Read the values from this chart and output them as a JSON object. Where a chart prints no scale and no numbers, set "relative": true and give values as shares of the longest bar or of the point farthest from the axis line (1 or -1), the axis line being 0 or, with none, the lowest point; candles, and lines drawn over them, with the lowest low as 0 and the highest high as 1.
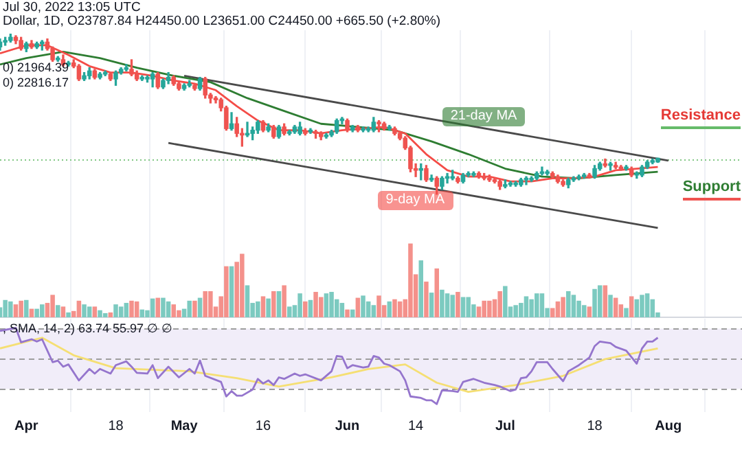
{
  "chart_data": [
    {
      "type": "candlestick",
      "title": "Dollar, 1D, O23787.84 H24450.00 L23651.00 C24450.00 +665.50 (+2.80%)",
      "subtitle": "Jul 30, 2022 13:05 UTC",
      "relative": true,
      "tick_labels": false,
      "grid": "x",
      "annotations": [
        "0) 21964.39",
        "0) 22816.17",
        "Resistance",
        "Support"
      ],
      "xlim": [
        "2022-03-27",
        "2022-08-15"
      ],
      "xticks": [
        "2022-04-01",
        "2022-04-18",
        "2022-05-01",
        "2022-05-16",
        "2022-06-01",
        "2022-06-14",
        "2022-07-01",
        "2022-07-18",
        "2022-08-01"
      ],
      "x": [
        "2022-03-27",
        "2022-03-28",
        "2022-03-29",
        "2022-03-30",
        "2022-03-31",
        "2022-04-01",
        "2022-04-02",
        "2022-04-03",
        "2022-04-04",
        "2022-04-05",
        "2022-04-06",
        "2022-04-07",
        "2022-04-08",
        "2022-04-09",
        "2022-04-10",
        "2022-04-11",
        "2022-04-12",
        "2022-04-13",
        "2022-04-14",
        "2022-04-15",
        "2022-04-16",
        "2022-04-17",
        "2022-04-18",
        "2022-04-19",
        "2022-04-20",
        "2022-04-21",
        "2022-04-22",
        "2022-04-23",
        "2022-04-24",
        "2022-04-25",
        "2022-04-26",
        "2022-04-27",
        "2022-04-28",
        "2022-04-29",
        "2022-04-30",
        "2022-05-01",
        "2022-05-02",
        "2022-05-03",
        "2022-05-04",
        "2022-05-05",
        "2022-05-06",
        "2022-05-07",
        "2022-05-08",
        "2022-05-09",
        "2022-05-10",
        "2022-05-11",
        "2022-05-12",
        "2022-05-13",
        "2022-05-14",
        "2022-05-15",
        "2022-05-16",
        "2022-05-17",
        "2022-05-18",
        "2022-05-19",
        "2022-05-20",
        "2022-05-21",
        "2022-05-22",
        "2022-05-23",
        "2022-05-24",
        "2022-05-25",
        "2022-05-26",
        "2022-05-27",
        "2022-05-28",
        "2022-05-29",
        "2022-05-30",
        "2022-05-31",
        "2022-06-01",
        "2022-06-02",
        "2022-06-03",
        "2022-06-04",
        "2022-06-05",
        "2022-06-06",
        "2022-06-07",
        "2022-06-08",
        "2022-06-09",
        "2022-06-10",
        "2022-06-11",
        "2022-06-12",
        "2022-06-13",
        "2022-06-14",
        "2022-06-15",
        "2022-06-16",
        "2022-06-17",
        "2022-06-18",
        "2022-06-19",
        "2022-06-20",
        "2022-06-21",
        "2022-06-22",
        "2022-06-23",
        "2022-06-24",
        "2022-06-25",
        "2022-06-26",
        "2022-06-27",
        "2022-06-28",
        "2022-06-29",
        "2022-06-30",
        "2022-07-01",
        "2022-07-02",
        "2022-07-03",
        "2022-07-04",
        "2022-07-05",
        "2022-07-06",
        "2022-07-07",
        "2022-07-08",
        "2022-07-09",
        "2022-07-10",
        "2022-07-11",
        "2022-07-12",
        "2022-07-13",
        "2022-07-14",
        "2022-07-15",
        "2022-07-16",
        "2022-07-17",
        "2022-07-18",
        "2022-07-19",
        "2022-07-20",
        "2022-07-21",
        "2022-07-22",
        "2022-07-23",
        "2022-07-24",
        "2022-07-25",
        "2022-07-26",
        "2022-07-27",
        "2022-07-28",
        "2022-07-29",
        "2022-07-30"
      ],
      "ohlc": [
        [
          0.92,
          0.97,
          0.9,
          0.95
        ],
        [
          0.95,
          0.98,
          0.93,
          0.96
        ],
        [
          0.96,
          1,
          0.95,
          0.98
        ],
        [
          0.98,
          0.99,
          0.94,
          0.96
        ],
        [
          0.96,
          0.98,
          0.9,
          0.91
        ],
        [
          0.91,
          0.95,
          0.89,
          0.94
        ],
        [
          0.94,
          0.96,
          0.91,
          0.92
        ],
        [
          0.92,
          0.95,
          0.91,
          0.94
        ],
        [
          0.94,
          0.96,
          0.9,
          0.95
        ],
        [
          0.95,
          0.97,
          0.9,
          0.91
        ],
        [
          0.91,
          0.92,
          0.83,
          0.84
        ],
        [
          0.84,
          0.86,
          0.83,
          0.85
        ],
        [
          0.84,
          0.87,
          0.8,
          0.81
        ],
        [
          0.81,
          0.83,
          0.8,
          0.82
        ],
        [
          0.82,
          0.84,
          0.79,
          0.8
        ],
        [
          0.8,
          0.81,
          0.71,
          0.72
        ],
        [
          0.72,
          0.76,
          0.71,
          0.74
        ],
        [
          0.74,
          0.79,
          0.72,
          0.77
        ],
        [
          0.77,
          0.78,
          0.72,
          0.73
        ],
        [
          0.73,
          0.76,
          0.72,
          0.75
        ],
        [
          0.75,
          0.77,
          0.74,
          0.76
        ],
        [
          0.75,
          0.76,
          0.71,
          0.72
        ],
        [
          0.72,
          0.77,
          0.68,
          0.76
        ],
        [
          0.76,
          0.79,
          0.75,
          0.78
        ],
        [
          0.78,
          0.81,
          0.77,
          0.79
        ],
        [
          0.78,
          0.84,
          0.74,
          0.75
        ],
        [
          0.75,
          0.77,
          0.71,
          0.72
        ],
        [
          0.72,
          0.74,
          0.71,
          0.73
        ],
        [
          0.72,
          0.74,
          0.7,
          0.73
        ],
        [
          0.72,
          0.76,
          0.67,
          0.75
        ],
        [
          0.75,
          0.76,
          0.66,
          0.67
        ],
        [
          0.67,
          0.72,
          0.66,
          0.71
        ],
        [
          0.71,
          0.76,
          0.69,
          0.73
        ],
        [
          0.73,
          0.74,
          0.68,
          0.69
        ],
        [
          0.69,
          0.7,
          0.65,
          0.66
        ],
        [
          0.66,
          0.69,
          0.65,
          0.68
        ],
        [
          0.68,
          0.71,
          0.67,
          0.69
        ],
        [
          0.68,
          0.69,
          0.65,
          0.66
        ],
        [
          0.66,
          0.73,
          0.65,
          0.72
        ],
        [
          0.72,
          0.73,
          0.6,
          0.62
        ],
        [
          0.62,
          0.63,
          0.57,
          0.6
        ],
        [
          0.6,
          0.61,
          0.57,
          0.59
        ],
        [
          0.59,
          0.6,
          0.52,
          0.54
        ],
        [
          0.54,
          0.55,
          0.4,
          0.41
        ],
        [
          0.41,
          0.51,
          0.4,
          0.44
        ],
        [
          0.44,
          0.48,
          0.36,
          0.38
        ],
        [
          0.38,
          0.41,
          0.3,
          0.37
        ],
        [
          0.37,
          0.45,
          0.36,
          0.38
        ],
        [
          0.38,
          0.42,
          0.34,
          0.4
        ],
        [
          0.4,
          0.46,
          0.38,
          0.45
        ],
        [
          0.45,
          0.46,
          0.39,
          0.4
        ],
        [
          0.4,
          0.44,
          0.39,
          0.42
        ],
        [
          0.42,
          0.43,
          0.35,
          0.36
        ],
        [
          0.36,
          0.43,
          0.35,
          0.42
        ],
        [
          0.42,
          0.44,
          0.37,
          0.38
        ],
        [
          0.38,
          0.4,
          0.37,
          0.39
        ],
        [
          0.39,
          0.43,
          0.38,
          0.42
        ],
        [
          0.38,
          0.45,
          0.37,
          0.42
        ],
        [
          0.38,
          0.41,
          0.37,
          0.39
        ],
        [
          0.39,
          0.41,
          0.38,
          0.4
        ],
        [
          0.39,
          0.4,
          0.35,
          0.38
        ],
        [
          0.38,
          0.39,
          0.34,
          0.36
        ],
        [
          0.36,
          0.38,
          0.35,
          0.37
        ],
        [
          0.37,
          0.4,
          0.36,
          0.39
        ],
        [
          0.39,
          0.47,
          0.38,
          0.46
        ],
        [
          0.46,
          0.48,
          0.44,
          0.47
        ],
        [
          0.46,
          0.47,
          0.39,
          0.4
        ],
        [
          0.4,
          0.43,
          0.39,
          0.42
        ],
        [
          0.42,
          0.43,
          0.39,
          0.4
        ],
        [
          0.4,
          0.42,
          0.39,
          0.41
        ],
        [
          0.4,
          0.42,
          0.39,
          0.41
        ],
        [
          0.4,
          0.48,
          0.39,
          0.45
        ],
        [
          0.45,
          0.46,
          0.39,
          0.44
        ],
        [
          0.44,
          0.45,
          0.4,
          0.41
        ],
        [
          0.41,
          0.43,
          0.4,
          0.42
        ],
        [
          0.41,
          0.42,
          0.37,
          0.38
        ],
        [
          0.38,
          0.39,
          0.34,
          0.35
        ],
        [
          0.35,
          0.36,
          0.28,
          0.29
        ],
        [
          0.29,
          0.3,
          0.14,
          0.16
        ],
        [
          0.16,
          0.19,
          0.11,
          0.15
        ],
        [
          0.15,
          0.19,
          0.09,
          0.16
        ],
        [
          0.16,
          0.18,
          0.08,
          0.09
        ],
        [
          0.09,
          0.12,
          0.08,
          0.1
        ],
        [
          0.1,
          0.11,
          0,
          0.05
        ],
        [
          0.05,
          0.11,
          0.03,
          0.1
        ],
        [
          0.1,
          0.13,
          0.07,
          0.11
        ],
        [
          0.1,
          0.15,
          0.09,
          0.11
        ],
        [
          0.1,
          0.11,
          0.07,
          0.08
        ],
        [
          0.08,
          0.13,
          0.07,
          0.12
        ],
        [
          0.12,
          0.14,
          0.11,
          0.13
        ],
        [
          0.12,
          0.14,
          0.11,
          0.13
        ],
        [
          0.13,
          0.14,
          0.1,
          0.11
        ],
        [
          0.11,
          0.13,
          0.09,
          0.1
        ],
        [
          0.1,
          0.12,
          0.08,
          0.09
        ],
        [
          0.09,
          0.1,
          0.07,
          0.08
        ],
        [
          0.08,
          0.09,
          0.03,
          0.05
        ],
        [
          0.05,
          0.09,
          0.04,
          0.06
        ],
        [
          0.06,
          0.08,
          0.05,
          0.07
        ],
        [
          0.06,
          0.08,
          0.05,
          0.07
        ],
        [
          0.06,
          0.1,
          0.05,
          0.09
        ],
        [
          0.09,
          0.11,
          0.06,
          0.1
        ],
        [
          0.09,
          0.11,
          0.08,
          0.1
        ],
        [
          0.1,
          0.14,
          0.09,
          0.13
        ],
        [
          0.13,
          0.17,
          0.12,
          0.14
        ],
        [
          0.13,
          0.15,
          0.12,
          0.14
        ],
        [
          0.13,
          0.14,
          0.1,
          0.11
        ],
        [
          0.11,
          0.12,
          0.07,
          0.08
        ],
        [
          0.08,
          0.09,
          0.05,
          0.06
        ],
        [
          0.06,
          0.1,
          0.04,
          0.09
        ],
        [
          0.09,
          0.11,
          0.08,
          0.1
        ],
        [
          0.1,
          0.12,
          0.09,
          0.11
        ],
        [
          0.11,
          0.13,
          0.1,
          0.12
        ],
        [
          0.12,
          0.13,
          0.1,
          0.11
        ],
        [
          0.11,
          0.18,
          0.1,
          0.16
        ],
        [
          0.16,
          0.2,
          0.15,
          0.19
        ],
        [
          0.19,
          0.22,
          0.17,
          0.18
        ],
        [
          0.18,
          0.2,
          0.15,
          0.19
        ],
        [
          0.18,
          0.2,
          0.16,
          0.17
        ],
        [
          0.17,
          0.18,
          0.15,
          0.16
        ],
        [
          0.16,
          0.18,
          0.15,
          0.17
        ],
        [
          0.16,
          0.17,
          0.11,
          0.12
        ],
        [
          0.12,
          0.14,
          0.1,
          0.13
        ],
        [
          0.12,
          0.18,
          0.11,
          0.17
        ],
        [
          0.17,
          0.21,
          0.16,
          0.2
        ],
        [
          0.2,
          0.22,
          0.19,
          0.21
        ],
        [
          0.202,
          0.225,
          0.199,
          0.225
        ]
      ],
      "colors": [
        "#26a69a",
        "#26a69a",
        "#26a69a",
        "#ef5350",
        "#ef5350",
        "#26a69a",
        "#ef5350",
        "#26a69a",
        "#26a69a",
        "#ef5350",
        "#ef5350",
        "#26a69a",
        "#ef5350",
        "#26a69a",
        "#ef5350",
        "#ef5350",
        "#26a69a",
        "#26a69a",
        "#ef5350",
        "#26a69a",
        "#26a69a",
        "#ef5350",
        "#26a69a",
        "#26a69a",
        "#26a69a",
        "#ef5350",
        "#ef5350",
        "#26a69a",
        "#26a69a",
        "#26a69a",
        "#ef5350",
        "#26a69a",
        "#26a69a",
        "#ef5350",
        "#ef5350",
        "#26a69a",
        "#26a69a",
        "#ef5350",
        "#26a69a",
        "#ef5350",
        "#ef5350",
        "#ef5350",
        "#ef5350",
        "#ef5350",
        "#26a69a",
        "#ef5350",
        "#ef5350",
        "#26a69a",
        "#26a69a",
        "#26a69a",
        "#ef5350",
        "#26a69a",
        "#ef5350",
        "#26a69a",
        "#ef5350",
        "#26a69a",
        "#26a69a",
        "#26a69a",
        "#ef5350",
        "#26a69a",
        "#ef5350",
        "#ef5350",
        "#26a69a",
        "#26a69a",
        "#26a69a",
        "#26a69a",
        "#ef5350",
        "#26a69a",
        "#ef5350",
        "#26a69a",
        "#26a69a",
        "#26a69a",
        "#ef5350",
        "#ef5350",
        "#26a69a",
        "#ef5350",
        "#ef5350",
        "#ef5350",
        "#ef5350",
        "#ef5350",
        "#26a69a",
        "#ef5350",
        "#26a69a",
        "#ef5350",
        "#26a69a",
        "#26a69a",
        "#26a69a",
        "#ef5350",
        "#26a69a",
        "#26a69a",
        "#26a69a",
        "#ef5350",
        "#ef5350",
        "#ef5350",
        "#ef5350",
        "#ef5350",
        "#26a69a",
        "#26a69a",
        "#26a69a",
        "#26a69a",
        "#26a69a",
        "#26a69a",
        "#26a69a",
        "#26a69a",
        "#26a69a",
        "#ef5350",
        "#ef5350",
        "#ef5350",
        "#26a69a",
        "#26a69a",
        "#26a69a",
        "#26a69a",
        "#ef5350",
        "#26a69a",
        "#26a69a",
        "#ef5350",
        "#26a69a",
        "#ef5350",
        "#ef5350",
        "#26a69a",
        "#ef5350",
        "#26a69a",
        "#26a69a",
        "#26a69a",
        "#26a69a",
        "#26a69a"
      ],
      "series": [
        {
          "type": "line",
          "name": "9-day MA",
          "color": "#f44c47",
          "x": [
            "2022-03-27",
            "2022-04-01",
            "2022-04-05",
            "2022-04-09",
            "2022-04-13",
            "2022-04-17",
            "2022-04-21",
            "2022-04-25",
            "2022-04-29",
            "2022-05-03",
            "2022-05-07",
            "2022-05-11",
            "2022-05-15",
            "2022-05-19",
            "2022-05-23",
            "2022-05-27",
            "2022-05-31",
            "2022-06-04",
            "2022-06-08",
            "2022-06-12",
            "2022-06-16",
            "2022-06-20",
            "2022-06-24",
            "2022-06-28",
            "2022-07-02",
            "2022-07-06",
            "2022-07-10",
            "2022-07-14",
            "2022-07-18",
            "2022-07-22",
            "2022-07-26",
            "2022-07-30"
          ],
          "values": [
            0.88,
            0.93,
            0.93,
            0.87,
            0.8,
            0.76,
            0.76,
            0.74,
            0.71,
            0.69,
            0.65,
            0.55,
            0.46,
            0.4,
            0.4,
            0.38,
            0.4,
            0.41,
            0.42,
            0.38,
            0.25,
            0.15,
            0.11,
            0.11,
            0.08,
            0.08,
            0.1,
            0.1,
            0.11,
            0.15,
            0.16,
            0.17
          ]
        },
        {
          "type": "line",
          "name": "21-day MA",
          "color": "#2e7d32",
          "x": [
            "2022-03-27",
            "2022-04-01",
            "2022-04-08",
            "2022-04-15",
            "2022-04-22",
            "2022-04-29",
            "2022-05-06",
            "2022-05-13",
            "2022-05-20",
            "2022-05-27",
            "2022-06-03",
            "2022-06-10",
            "2022-06-17",
            "2022-06-24",
            "2022-07-01",
            "2022-07-08",
            "2022-07-15",
            "2022-07-22",
            "2022-07-30"
          ],
          "values": [
            0.81,
            0.85,
            0.89,
            0.85,
            0.79,
            0.74,
            0.7,
            0.6,
            0.52,
            0.44,
            0.42,
            0.4,
            0.33,
            0.25,
            0.16,
            0.11,
            0.1,
            0.12,
            0.14
          ]
        },
        {
          "type": "line",
          "color": "#4a4a4a",
          "x": [
            "2022-05-01",
            "2022-08-01"
          ],
          "values": [
            0.74,
            0.21
          ]
        },
        {
          "type": "line",
          "color": "#4a4a4a",
          "x": [
            "2022-04-28",
            "2022-07-30"
          ],
          "values": [
            0.32,
            -0.21
          ]
        }
      ],
      "ref_lines": [
        {
          "axis": "y",
          "value": 0.22,
          "color": "#81c784",
          "line_style": "dotted"
        }
      ]
    },
    {
      "type": "bar",
      "relative": true,
      "tick_labels": false,
      "grid": "x",
      "xlim": [
        "2022-03-27",
        "2022-08-15"
      ],
      "xticks": [
        "2022-04-01",
        "2022-04-18",
        "2022-05-01",
        "2022-05-16",
        "2022-06-01",
        "2022-06-14",
        "2022-07-01",
        "2022-07-18",
        "2022-08-01"
      ],
      "x": [
        "2022-03-27",
        "2022-03-28",
        "2022-03-29",
        "2022-03-30",
        "2022-03-31",
        "2022-04-01",
        "2022-04-02",
        "2022-04-03",
        "2022-04-04",
        "2022-04-05",
        "2022-04-06",
        "2022-04-07",
        "2022-04-08",
        "2022-04-09",
        "2022-04-10",
        "2022-04-11",
        "2022-04-12",
        "2022-04-13",
        "2022-04-14",
        "2022-04-15",
        "2022-04-16",
        "2022-04-17",
        "2022-04-18",
        "2022-04-19",
        "2022-04-20",
        "2022-04-21",
        "2022-04-22",
        "2022-04-23",
        "2022-04-24",
        "2022-04-25",
        "2022-04-26",
        "2022-04-27",
        "2022-04-28",
        "2022-04-29",
        "2022-04-30",
        "2022-05-01",
        "2022-05-02",
        "2022-05-03",
        "2022-05-04",
        "2022-05-05",
        "2022-05-06",
        "2022-05-07",
        "2022-05-08",
        "2022-05-09",
        "2022-05-10",
        "2022-05-11",
        "2022-05-12",
        "2022-05-13",
        "2022-05-14",
        "2022-05-15",
        "2022-05-16",
        "2022-05-17",
        "2022-05-18",
        "2022-05-19",
        "2022-05-20",
        "2022-05-21",
        "2022-05-22",
        "2022-05-23",
        "2022-05-24",
        "2022-05-25",
        "2022-05-26",
        "2022-05-27",
        "2022-05-28",
        "2022-05-29",
        "2022-05-30",
        "2022-05-31",
        "2022-06-01",
        "2022-06-02",
        "2022-06-03",
        "2022-06-04",
        "2022-06-05",
        "2022-06-06",
        "2022-06-07",
        "2022-06-08",
        "2022-06-09",
        "2022-06-10",
        "2022-06-11",
        "2022-06-12",
        "2022-06-13",
        "2022-06-14",
        "2022-06-15",
        "2022-06-16",
        "2022-06-17",
        "2022-06-18",
        "2022-06-19",
        "2022-06-20",
        "2022-06-21",
        "2022-06-22",
        "2022-06-23",
        "2022-06-24",
        "2022-06-25",
        "2022-06-26",
        "2022-06-27",
        "2022-06-28",
        "2022-06-29",
        "2022-06-30",
        "2022-07-01",
        "2022-07-02",
        "2022-07-03",
        "2022-07-04",
        "2022-07-05",
        "2022-07-06",
        "2022-07-07",
        "2022-07-08",
        "2022-07-09",
        "2022-07-10",
        "2022-07-11",
        "2022-07-12",
        "2022-07-13",
        "2022-07-14",
        "2022-07-15",
        "2022-07-16",
        "2022-07-17",
        "2022-07-18",
        "2022-07-19",
        "2022-07-20",
        "2022-07-21",
        "2022-07-22",
        "2022-07-23",
        "2022-07-24",
        "2022-07-25",
        "2022-07-26",
        "2022-07-27",
        "2022-07-28",
        "2022-07-29",
        "2022-07-30"
      ],
      "values": [
        0.13,
        0.23,
        0.21,
        0.17,
        0.22,
        0.23,
        0.11,
        0.11,
        0.17,
        0.19,
        0.3,
        0.16,
        0.14,
        0.06,
        0.08,
        0.22,
        0.17,
        0.14,
        0.14,
        0.09,
        0.05,
        0.06,
        0.17,
        0.14,
        0.19,
        0.22,
        0.21,
        0.1,
        0.09,
        0.25,
        0.26,
        0.26,
        0.21,
        0.17,
        0.09,
        0.11,
        0.22,
        0.22,
        0.26,
        0.35,
        0.35,
        0.14,
        0.28,
        0.69,
        0.69,
        0.75,
        0.86,
        0.43,
        0.19,
        0.21,
        0.28,
        0.25,
        0.35,
        0.35,
        0.43,
        0.14,
        0.16,
        0.32,
        0.21,
        0.23,
        0.34,
        0.27,
        0.32,
        0.34,
        0.24,
        0.19,
        0.1,
        0.1,
        0.26,
        0.29,
        0.21,
        0.16,
        0.29,
        0.16,
        0.21,
        0.24,
        0.21,
        0.24,
        1,
        0.58,
        0.77,
        0.48,
        0.33,
        0.66,
        0.37,
        0.32,
        0.3,
        0.34,
        0.27,
        0.27,
        0.17,
        0.14,
        0.22,
        0.22,
        0.24,
        0.35,
        0.42,
        0.14,
        0.16,
        0.19,
        0.28,
        0.24,
        0.32,
        0.32,
        0.12,
        0.12,
        0.21,
        0.27,
        0.35,
        0.3,
        0.22,
        0.16,
        0.14,
        0.38,
        0.43,
        0.43,
        0.3,
        0.26,
        0.17,
        0.12,
        0.28,
        0.24,
        0.3,
        0.32,
        0.24,
        0.06
      ],
      "colors": [
        "#7ccac0",
        "#7ccac0",
        "#7ccac0",
        "#f4918b",
        "#f4918b",
        "#7ccac0",
        "#f4918b",
        "#7ccac0",
        "#7ccac0",
        "#f4918b",
        "#f4918b",
        "#7ccac0",
        "#f4918b",
        "#7ccac0",
        "#f4918b",
        "#f4918b",
        "#7ccac0",
        "#7ccac0",
        "#f4918b",
        "#7ccac0",
        "#7ccac0",
        "#f4918b",
        "#7ccac0",
        "#7ccac0",
        "#7ccac0",
        "#f4918b",
        "#f4918b",
        "#7ccac0",
        "#7ccac0",
        "#7ccac0",
        "#f4918b",
        "#7ccac0",
        "#7ccac0",
        "#f4918b",
        "#f4918b",
        "#7ccac0",
        "#7ccac0",
        "#f4918b",
        "#7ccac0",
        "#f4918b",
        "#f4918b",
        "#f4918b",
        "#f4918b",
        "#f4918b",
        "#7ccac0",
        "#f4918b",
        "#f4918b",
        "#7ccac0",
        "#7ccac0",
        "#7ccac0",
        "#f4918b",
        "#7ccac0",
        "#f4918b",
        "#7ccac0",
        "#f4918b",
        "#7ccac0",
        "#7ccac0",
        "#7ccac0",
        "#f4918b",
        "#7ccac0",
        "#f4918b",
        "#f4918b",
        "#7ccac0",
        "#7ccac0",
        "#7ccac0",
        "#7ccac0",
        "#f4918b",
        "#7ccac0",
        "#f4918b",
        "#7ccac0",
        "#7ccac0",
        "#7ccac0",
        "#f4918b",
        "#f4918b",
        "#7ccac0",
        "#f4918b",
        "#f4918b",
        "#f4918b",
        "#f4918b",
        "#f4918b",
        "#7ccac0",
        "#f4918b",
        "#7ccac0",
        "#f4918b",
        "#7ccac0",
        "#7ccac0",
        "#7ccac0",
        "#f4918b",
        "#7ccac0",
        "#7ccac0",
        "#7ccac0",
        "#f4918b",
        "#f4918b",
        "#f4918b",
        "#f4918b",
        "#f4918b",
        "#7ccac0",
        "#7ccac0",
        "#7ccac0",
        "#7ccac0",
        "#7ccac0",
        "#7ccac0",
        "#7ccac0",
        "#7ccac0",
        "#7ccac0",
        "#f4918b",
        "#f4918b",
        "#f4918b",
        "#7ccac0",
        "#7ccac0",
        "#7ccac0",
        "#7ccac0",
        "#f4918b",
        "#7ccac0",
        "#7ccac0",
        "#f4918b",
        "#7ccac0",
        "#f4918b",
        "#f4918b",
        "#7ccac0",
        "#f4918b",
        "#7ccac0",
        "#7ccac0",
        "#7ccac0",
        "#7ccac0",
        "#7ccac0"
      ]
    },
    {
      "type": "line",
      "annotations": [
        ", SMA, 14, 2)  63.74  55.97  ∅  ∅"
      ],
      "relative": true,
      "tick_labels": "x",
      "grid": "x",
      "xlim": [
        "2022-03-27",
        "2022-08-15"
      ],
      "xticks": [
        {
          "value": "2022-04-01",
          "label": "Apr"
        },
        {
          "value": "2022-04-18",
          "label": "18"
        },
        {
          "value": "2022-05-01",
          "label": "May"
        },
        {
          "value": "2022-05-16",
          "label": "16"
        },
        {
          "value": "2022-06-01",
          "label": "Jun"
        },
        {
          "value": "2022-06-14",
          "label": "14"
        },
        {
          "value": "2022-07-01",
          "label": "Jul"
        },
        {
          "value": "2022-07-18",
          "label": "18"
        },
        {
          "value": "2022-08-01",
          "label": "Aug"
        }
      ],
      "series": [
        {
          "color": "#9575cd",
          "x": [
            "2022-03-27",
            "2022-03-30",
            "2022-03-31",
            "2022-04-02",
            "2022-04-03",
            "2022-04-04",
            "2022-04-06",
            "2022-04-07",
            "2022-04-08",
            "2022-04-09",
            "2022-04-11",
            "2022-04-13",
            "2022-04-14",
            "2022-04-15",
            "2022-04-17",
            "2022-04-18",
            "2022-04-20",
            "2022-04-21",
            "2022-04-22",
            "2022-04-24",
            "2022-04-25",
            "2022-04-26",
            "2022-04-28",
            "2022-04-30",
            "2022-05-02",
            "2022-05-03",
            "2022-05-04",
            "2022-05-05",
            "2022-05-08",
            "2022-05-09",
            "2022-05-10",
            "2022-05-11",
            "2022-05-12",
            "2022-05-14",
            "2022-05-15",
            "2022-05-16",
            "2022-05-17",
            "2022-05-18",
            "2022-05-19",
            "2022-05-20",
            "2022-05-22",
            "2022-05-23",
            "2022-05-24",
            "2022-05-27",
            "2022-05-29",
            "2022-05-30",
            "2022-05-31",
            "2022-06-01",
            "2022-06-02",
            "2022-06-04",
            "2022-06-05",
            "2022-06-06",
            "2022-06-07",
            "2022-06-08",
            "2022-06-09",
            "2022-06-11",
            "2022-06-12",
            "2022-06-13",
            "2022-06-15",
            "2022-06-16",
            "2022-06-17",
            "2022-06-18",
            "2022-06-19",
            "2022-06-21",
            "2022-06-22",
            "2022-06-23",
            "2022-06-25",
            "2022-06-27",
            "2022-06-29",
            "2022-06-30",
            "2022-07-02",
            "2022-07-03",
            "2022-07-04",
            "2022-07-05",
            "2022-07-06",
            "2022-07-07",
            "2022-07-09",
            "2022-07-10",
            "2022-07-12",
            "2022-07-13",
            "2022-07-15",
            "2022-07-17",
            "2022-07-18",
            "2022-07-19",
            "2022-07-21",
            "2022-07-22",
            "2022-07-24",
            "2022-07-26",
            "2022-07-27",
            "2022-07-28",
            "2022-07-29",
            "2022-07-30"
          ],
          "values": [
            0.96,
            1,
            0.81,
            0.85,
            0.82,
            0.85,
            0.55,
            0.57,
            0.49,
            0.52,
            0.31,
            0.46,
            0.4,
            0.46,
            0.4,
            0.51,
            0.56,
            0.49,
            0.41,
            0.4,
            0.51,
            0.34,
            0.49,
            0.35,
            0.46,
            0.4,
            0.57,
            0.37,
            0.29,
            0.1,
            0.17,
            0.11,
            0.11,
            0.19,
            0.33,
            0.27,
            0.31,
            0.25,
            0.35,
            0.33,
            0.4,
            0.37,
            0.39,
            0.31,
            0.43,
            0.63,
            0.62,
            0.47,
            0.51,
            0.48,
            0.49,
            0.63,
            0.61,
            0.53,
            0.51,
            0.43,
            0.31,
            0.1,
            0.08,
            0.05,
            0.05,
            0,
            0.18,
            0.17,
            0.16,
            0.29,
            0.33,
            0.28,
            0.25,
            0.23,
            0.17,
            0.19,
            0.34,
            0.35,
            0.43,
            0.55,
            0.55,
            0.46,
            0.3,
            0.43,
            0.51,
            0.61,
            0.76,
            0.82,
            0.8,
            0.75,
            0.7,
            0.53,
            0.73,
            0.82,
            0.82,
            0.87
          ]
        },
        {
          "color": "#f5df73",
          "x": [
            "2022-03-27",
            "2022-04-04",
            "2022-04-10",
            "2022-04-18",
            "2022-05-02",
            "2022-05-11",
            "2022-05-19",
            "2022-05-29",
            "2022-06-05",
            "2022-06-12",
            "2022-06-18",
            "2022-06-24",
            "2022-07-03",
            "2022-07-12",
            "2022-07-20",
            "2022-07-30"
          ],
          "values": [
            0.73,
            0.87,
            0.64,
            0.47,
            0.43,
            0.34,
            0.23,
            0.35,
            0.46,
            0.52,
            0.28,
            0.16,
            0.25,
            0.37,
            0.59,
            0.73
          ]
        }
      ],
      "ref_lines": [
        {
          "axis": "y",
          "value": 0.99,
          "color": "#9e9e9e",
          "line_style": "dashed"
        },
        {
          "axis": "y",
          "value": 0.6,
          "color": "#9e9e9e",
          "line_style": "dashed"
        },
        {
          "axis": "y",
          "value": 0.2,
          "color": "#9e9e9e",
          "line_style": "dashed"
        }
      ],
      "bands": [
        {
          "axis": "y",
          "from": 0.2,
          "to": 0.99,
          "color": "#f1edf9"
        }
      ]
    }
  ]
}
